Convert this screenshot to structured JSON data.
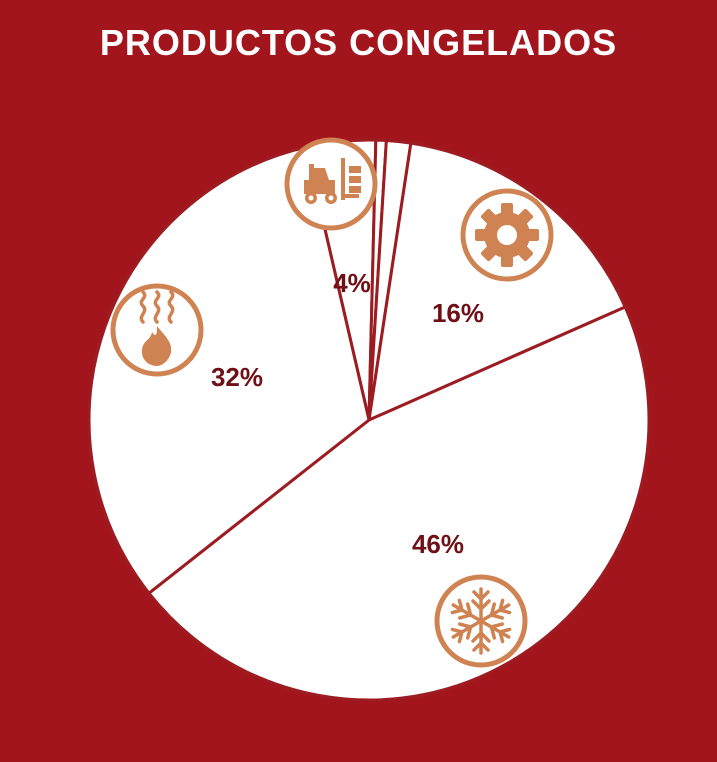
{
  "chart_data": {
    "type": "pie",
    "title": "PRODUCTOS CONGELADOS",
    "slices": [
      {
        "label": "4%",
        "value": 4,
        "icon": "forklift-icon"
      },
      {
        "label": "",
        "value": 0.6,
        "icon": ""
      },
      {
        "label": "",
        "value": 1.4,
        "icon": ""
      },
      {
        "label": "16%",
        "value": 16,
        "icon": "gear-icon"
      },
      {
        "label": "46%",
        "value": 46,
        "icon": "snowflake-icon"
      },
      {
        "label": "32%",
        "value": 32,
        "icon": "flame-steam-icon"
      }
    ]
  },
  "colors": {
    "background": "#a3151c",
    "slice_fill": "#ffffff",
    "slice_border": "#9c1c22",
    "label_text": "#6e1016",
    "icon_accent": "#d08352"
  }
}
